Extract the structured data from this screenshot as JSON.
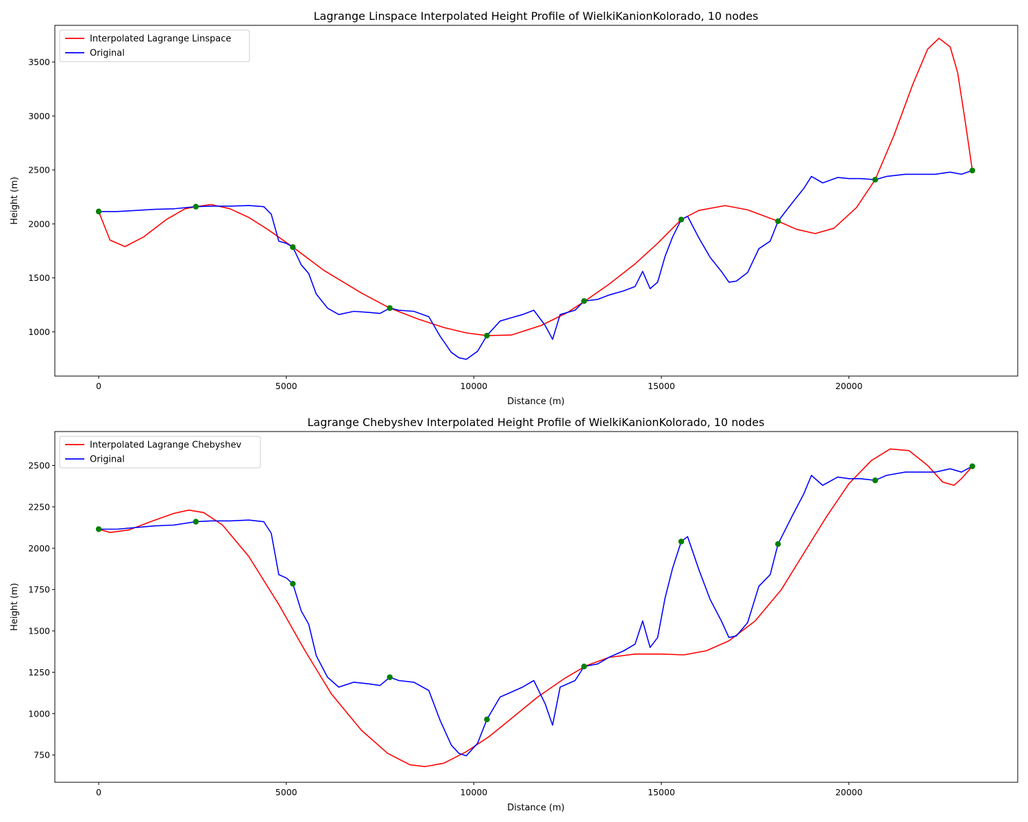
{
  "chart_data": [
    {
      "type": "line",
      "title": "Lagrange Linspace Interpolated Height Profile of WielkiKanionKolorado, 10 nodes",
      "xlabel": "Distance (m)",
      "ylabel": "Height (m)",
      "xlim": [
        -1170,
        24500
      ],
      "ylim": [
        590,
        3840
      ],
      "xticks": [
        0,
        5000,
        10000,
        15000,
        20000
      ],
      "yticks": [
        1000,
        1500,
        2000,
        2500,
        3000,
        3500
      ],
      "legend_position": "upper-left",
      "grid": false,
      "series": [
        {
          "name": "Interpolated Lagrange Linspace",
          "color": "#ff0000",
          "x": [
            0,
            300,
            700,
            1200,
            1800,
            2300,
            2600,
            3000,
            3500,
            4000,
            4500,
            5175,
            6000,
            7000,
            7760,
            8500,
            9200,
            9800,
            10350,
            11000,
            11800,
            12500,
            12940,
            13600,
            14300,
            14900,
            15530,
            16000,
            16700,
            17300,
            18110,
            18600,
            19100,
            19600,
            20200,
            20700,
            21200,
            21700,
            22100,
            22400,
            22700,
            22900,
            23100,
            23290
          ],
          "y": [
            2115,
            1850,
            1790,
            1880,
            2040,
            2140,
            2160,
            2180,
            2140,
            2060,
            1950,
            1785,
            1570,
            1360,
            1220,
            1120,
            1040,
            990,
            965,
            970,
            1060,
            1180,
            1280,
            1440,
            1630,
            1820,
            2040,
            2125,
            2170,
            2130,
            2025,
            1950,
            1910,
            1960,
            2150,
            2410,
            2820,
            3290,
            3620,
            3720,
            3640,
            3400,
            2950,
            2495
          ]
        },
        {
          "name": "Original",
          "color": "#0000ff",
          "x": [
            0,
            500,
            1000,
            1500,
            2000,
            2590,
            3000,
            3500,
            4000,
            4400,
            4600,
            4800,
            5000,
            5175,
            5400,
            5600,
            5800,
            6100,
            6400,
            6800,
            7200,
            7500,
            7760,
            8000,
            8400,
            8800,
            9100,
            9400,
            9600,
            9800,
            10100,
            10350,
            10700,
            11000,
            11300,
            11600,
            11900,
            12100,
            12300,
            12700,
            12940,
            13300,
            13600,
            14000,
            14300,
            14500,
            14700,
            14900,
            15100,
            15300,
            15530,
            15700,
            16000,
            16300,
            16600,
            16800,
            17000,
            17300,
            17600,
            17900,
            18110,
            18500,
            18800,
            19000,
            19300,
            19700,
            20000,
            20300,
            20700,
            21000,
            21500,
            22000,
            22300,
            22500,
            22700,
            23000,
            23290
          ],
          "y": [
            2115,
            2115,
            2125,
            2135,
            2140,
            2160,
            2165,
            2165,
            2170,
            2160,
            2090,
            1840,
            1820,
            1785,
            1620,
            1540,
            1350,
            1220,
            1160,
            1190,
            1180,
            1170,
            1220,
            1200,
            1190,
            1140,
            960,
            810,
            760,
            745,
            820,
            965,
            1100,
            1130,
            1160,
            1200,
            1060,
            930,
            1160,
            1200,
            1285,
            1300,
            1340,
            1380,
            1420,
            1560,
            1400,
            1460,
            1700,
            1880,
            2040,
            2070,
            1870,
            1690,
            1560,
            1460,
            1470,
            1550,
            1770,
            1840,
            2025,
            2200,
            2330,
            2440,
            2380,
            2430,
            2420,
            2420,
            2410,
            2440,
            2460,
            2460,
            2460,
            2470,
            2480,
            2460,
            2495
          ]
        }
      ],
      "nodes": {
        "color": "#008000",
        "x": [
          0,
          2590,
          5175,
          7760,
          10350,
          12940,
          15530,
          18110,
          20700,
          23290
        ],
        "y": [
          2115,
          2160,
          1785,
          1220,
          965,
          1285,
          2040,
          2025,
          2410,
          2495
        ]
      }
    },
    {
      "type": "line",
      "title": "Lagrange Chebyshev Interpolated Height Profile of WielkiKanionKolorado, 10 nodes",
      "xlabel": "Distance (m)",
      "ylabel": "Height (m)",
      "xlim": [
        -1170,
        24500
      ],
      "ylim": [
        585,
        2705
      ],
      "xticks": [
        0,
        5000,
        10000,
        15000,
        20000
      ],
      "yticks": [
        750,
        1000,
        1250,
        1500,
        1750,
        2000,
        2250,
        2500
      ],
      "legend_position": "upper-left",
      "grid": false,
      "series": [
        {
          "name": "Interpolated Lagrange Chebyshev",
          "color": "#ff0000",
          "x": [
            0,
            300,
            800,
            1500,
            2000,
            2400,
            2800,
            3300,
            4000,
            4800,
            5500,
            6200,
            7000,
            7700,
            8300,
            8700,
            9200,
            9800,
            10400,
            11000,
            11700,
            12400,
            13000,
            13600,
            14300,
            15000,
            15600,
            16200,
            16800,
            17500,
            18200,
            18800,
            19400,
            20000,
            20600,
            21100,
            21600,
            22100,
            22500,
            22800,
            23000,
            23290
          ],
          "y": [
            2115,
            2095,
            2110,
            2170,
            2210,
            2230,
            2215,
            2140,
            1950,
            1660,
            1380,
            1120,
            900,
            760,
            690,
            680,
            700,
            770,
            860,
            970,
            1100,
            1210,
            1290,
            1340,
            1360,
            1360,
            1355,
            1380,
            1440,
            1560,
            1750,
            1970,
            2190,
            2390,
            2530,
            2600,
            2590,
            2500,
            2400,
            2380,
            2420,
            2495
          ]
        },
        {
          "name": "Original",
          "color": "#0000ff",
          "x": [
            0,
            500,
            1000,
            1500,
            2000,
            2590,
            3000,
            3500,
            4000,
            4400,
            4600,
            4800,
            5000,
            5175,
            5400,
            5600,
            5800,
            6100,
            6400,
            6800,
            7200,
            7500,
            7760,
            8000,
            8400,
            8800,
            9100,
            9400,
            9600,
            9800,
            10100,
            10350,
            10700,
            11000,
            11300,
            11600,
            11900,
            12100,
            12300,
            12700,
            12940,
            13300,
            13600,
            14000,
            14300,
            14500,
            14700,
            14900,
            15100,
            15300,
            15530,
            15700,
            16000,
            16300,
            16600,
            16800,
            17000,
            17300,
            17600,
            17900,
            18110,
            18500,
            18800,
            19000,
            19300,
            19700,
            20000,
            20300,
            20700,
            21000,
            21500,
            22000,
            22300,
            22500,
            22700,
            23000,
            23290
          ],
          "y": [
            2115,
            2115,
            2125,
            2135,
            2140,
            2160,
            2165,
            2165,
            2170,
            2160,
            2090,
            1840,
            1820,
            1785,
            1620,
            1540,
            1350,
            1220,
            1160,
            1190,
            1180,
            1170,
            1220,
            1200,
            1190,
            1140,
            960,
            810,
            760,
            745,
            820,
            965,
            1100,
            1130,
            1160,
            1200,
            1060,
            930,
            1160,
            1200,
            1285,
            1300,
            1340,
            1380,
            1420,
            1560,
            1400,
            1460,
            1700,
            1880,
            2040,
            2070,
            1870,
            1690,
            1560,
            1460,
            1470,
            1550,
            1770,
            1840,
            2025,
            2200,
            2330,
            2440,
            2380,
            2430,
            2420,
            2420,
            2410,
            2440,
            2460,
            2460,
            2460,
            2470,
            2480,
            2460,
            2495
          ]
        }
      ],
      "nodes": {
        "color": "#008000",
        "x": [
          0,
          2590,
          5175,
          7760,
          10350,
          12940,
          15530,
          18110,
          20700,
          23290
        ],
        "y": [
          2115,
          2160,
          1785,
          1220,
          965,
          1285,
          2040,
          2025,
          2410,
          2495
        ]
      }
    }
  ]
}
